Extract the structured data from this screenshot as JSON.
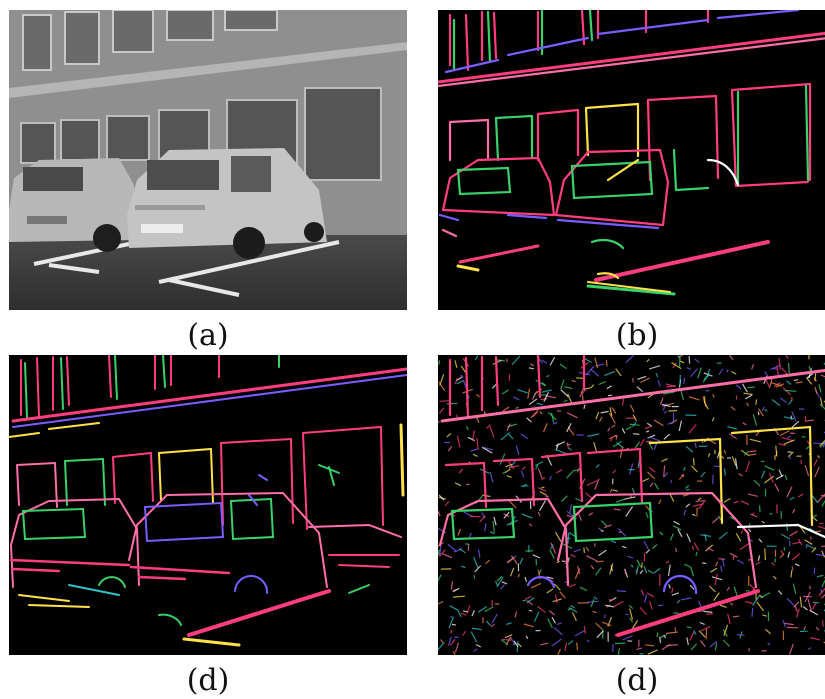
{
  "panels": [
    {
      "caption": "(a)",
      "kind": "photo"
    },
    {
      "caption": "(b)",
      "kind": "edges-sparse"
    },
    {
      "caption": "(d)",
      "kind": "edges-medium"
    },
    {
      "caption": "(d)",
      "kind": "edges-dense"
    }
  ],
  "colors": {
    "background": "#ffffff",
    "panel_bg": "#000000",
    "edge_palette": [
      "#ff3d7f",
      "#ff6fa8",
      "#3ad06a",
      "#7a5cff",
      "#ffe14a",
      "#2ec4c4",
      "#ff8a3d",
      "#ffffff"
    ]
  }
}
